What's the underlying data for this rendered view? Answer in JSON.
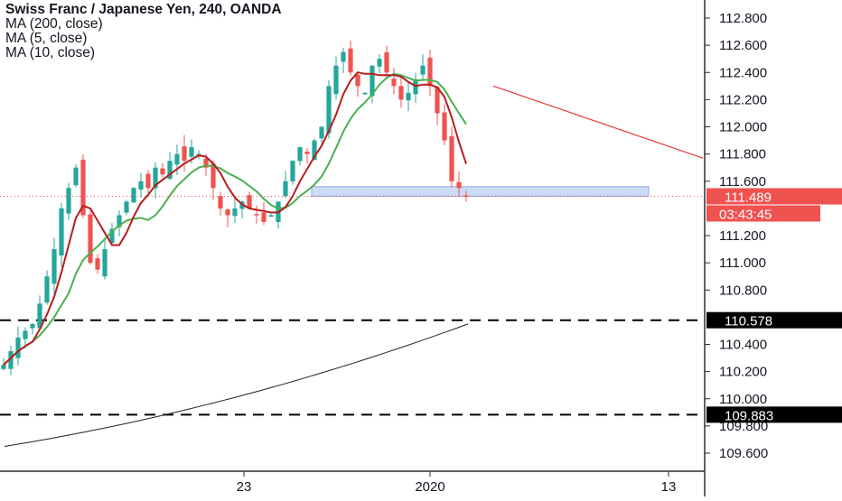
{
  "legend": {
    "title": "Swiss Franc / Japanese Yen, 240, OANDA",
    "ma200": "MA (200, close)",
    "ma5": "MA (5, close)",
    "ma10": "MA (10, close)"
  },
  "colors": {
    "up": "#26a69a",
    "down": "#ef5350",
    "ma5": "#b71c1c",
    "ma10": "#4caf50",
    "ma200": "#222222",
    "zone": "#c5d5f5",
    "trendline": "#e53935"
  },
  "chart_data": {
    "type": "candlestick",
    "title": "Swiss Franc / Japanese Yen, 240, OANDA",
    "ylim": [
      109.45,
      112.95
    ],
    "y_ticks": [
      "112.800",
      "112.600",
      "112.400",
      "112.200",
      "112.000",
      "111.800",
      "111.600",
      "111.200",
      "111.000",
      "110.800",
      "110.400",
      "110.200",
      "110.000",
      "109.800",
      "109.600"
    ],
    "x_ticks": [
      "23",
      "2020",
      "13"
    ],
    "price_label": {
      "value": "111.489",
      "countdown": "03:43:45"
    },
    "horizontal_levels": [
      {
        "value": "110.578",
        "style": "dashed"
      },
      {
        "value": "109.883",
        "style": "dashed"
      }
    ],
    "support_zone": {
      "low": 111.49,
      "high": 111.56
    },
    "trendline": {
      "from": 112.3,
      "to": 111.77
    },
    "candles_close_path": [
      110.25,
      110.35,
      110.45,
      110.5,
      110.55,
      110.7,
      110.9,
      111.1,
      111.4,
      111.55,
      111.7,
      111.35,
      111.0,
      110.95,
      111.1,
      111.25,
      111.35,
      111.45,
      111.55,
      111.6,
      111.55,
      111.7,
      111.65,
      111.75,
      111.8,
      111.75,
      111.85,
      111.8,
      111.7,
      111.55,
      111.4,
      111.35,
      111.4,
      111.45,
      111.4,
      111.35,
      111.3,
      111.35,
      111.45,
      111.6,
      111.75,
      111.85,
      111.8,
      111.9,
      112.0,
      112.3,
      112.45,
      112.55,
      112.4,
      112.3,
      112.25,
      112.45,
      112.5,
      112.4,
      112.3,
      112.2,
      112.25,
      112.35,
      112.45,
      112.3,
      112.1,
      111.9,
      111.6,
      111.55,
      111.49
    ],
    "ma_series": [
      {
        "name": "MA (5, close)"
      },
      {
        "name": "MA (10, close)"
      },
      {
        "name": "MA (200, close)"
      }
    ]
  }
}
